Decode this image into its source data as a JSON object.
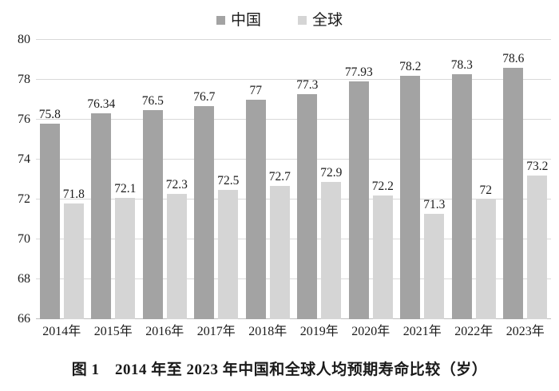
{
  "caption": "图 1　2014 年至 2023 年中国和全球人均预期寿命比较（岁）",
  "colors": {
    "china_bar": "#a3a3a3",
    "global_bar": "#d5d5d5",
    "gridline": "#d9d9d9",
    "text": "#1a1a1a"
  },
  "chart_data": {
    "type": "bar",
    "title": "图 1　2014 年至 2023 年中国和全球人均预期寿命比较（岁）",
    "categories": [
      "2014年",
      "2015年",
      "2016年",
      "2017年",
      "2018年",
      "2019年",
      "2020年",
      "2021年",
      "2022年",
      "2023年"
    ],
    "series": [
      {
        "name": "中国",
        "color": "#a3a3a3",
        "values": [
          75.8,
          76.34,
          76.5,
          76.7,
          77,
          77.3,
          77.93,
          78.2,
          78.3,
          78.6
        ],
        "labels": [
          "75.8",
          "76.34",
          "76.5",
          "76.7",
          "77",
          "77.3",
          "77.93",
          "78.2",
          "78.3",
          "78.6"
        ]
      },
      {
        "name": "全球",
        "color": "#d5d5d5",
        "values": [
          71.8,
          72.1,
          72.3,
          72.5,
          72.7,
          72.9,
          72.2,
          71.3,
          72,
          73.2
        ],
        "labels": [
          "71.8",
          "72.1",
          "72.3",
          "72.5",
          "72.7",
          "72.9",
          "72.2",
          "71.3",
          "72",
          "73.2"
        ]
      }
    ],
    "xlabel": "",
    "ylabel": "",
    "ylim": [
      66,
      80
    ],
    "yticks": [
      66,
      68,
      70,
      72,
      74,
      76,
      78,
      80
    ],
    "grid": true,
    "legend_position": "top-center"
  }
}
